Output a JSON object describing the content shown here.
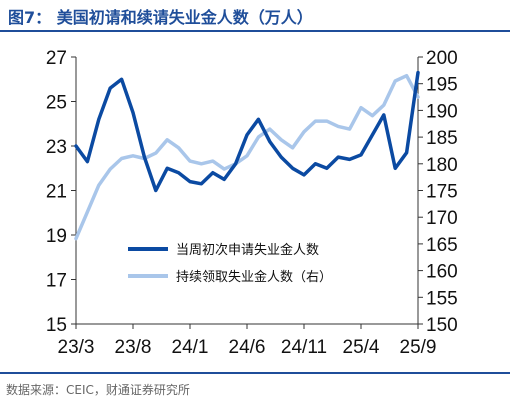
{
  "header": {
    "title": "图7：  美国初请和续请失业金人数（万人）"
  },
  "footer": {
    "source": "数据来源：CEIC，财通证券研究所"
  },
  "chart_data": {
    "type": "line",
    "x": [
      "23/3",
      "23/4",
      "23/5",
      "23/6",
      "23/7",
      "23/8",
      "23/9",
      "23/10",
      "23/11",
      "23/12",
      "24/1",
      "24/2",
      "24/3",
      "24/4",
      "24/5",
      "24/6",
      "24/7",
      "24/8",
      "24/9",
      "24/10",
      "24/11",
      "24/12",
      "25/1",
      "25/2",
      "25/3",
      "25/4",
      "25/5",
      "25/6",
      "25/7",
      "25/8",
      "25/9"
    ],
    "xticks": [
      "23/3",
      "23/8",
      "24/1",
      "24/6",
      "24/11",
      "25/4",
      "25/9"
    ],
    "y_left": {
      "ticks": [
        "27",
        "25",
        "23",
        "21",
        "19",
        "17",
        "15"
      ],
      "ylim": [
        15,
        27
      ]
    },
    "y_right": {
      "ticks": [
        "200",
        "195",
        "190",
        "185",
        "180",
        "175",
        "170",
        "165",
        "160",
        "155",
        "150"
      ],
      "ylim": [
        150,
        200
      ]
    },
    "legend_position": "center",
    "series": [
      {
        "name": "当周初次申请失业金人数",
        "axis": "left",
        "color": "#0b4aa2",
        "values": [
          23.0,
          22.3,
          24.2,
          25.6,
          26.0,
          24.5,
          22.5,
          21.0,
          22.0,
          21.8,
          21.4,
          21.3,
          21.8,
          21.5,
          22.2,
          23.5,
          24.2,
          23.2,
          22.5,
          22.0,
          21.7,
          22.2,
          22.0,
          22.5,
          22.4,
          22.6,
          23.5,
          24.4,
          22.0,
          22.7,
          26.3
        ]
      },
      {
        "name": "持续领取失业金人数（右）",
        "axis": "right",
        "color": "#a9c6ea",
        "values": [
          166.0,
          171.0,
          176.0,
          179.0,
          181.0,
          181.5,
          181.0,
          182.0,
          184.5,
          183.0,
          180.5,
          180.0,
          180.5,
          179.0,
          180.0,
          181.5,
          185.0,
          186.5,
          184.5,
          183.0,
          186.0,
          188.0,
          188.0,
          187.0,
          186.5,
          190.5,
          189.0,
          191.0,
          195.5,
          196.5,
          192.5
        ]
      }
    ]
  }
}
